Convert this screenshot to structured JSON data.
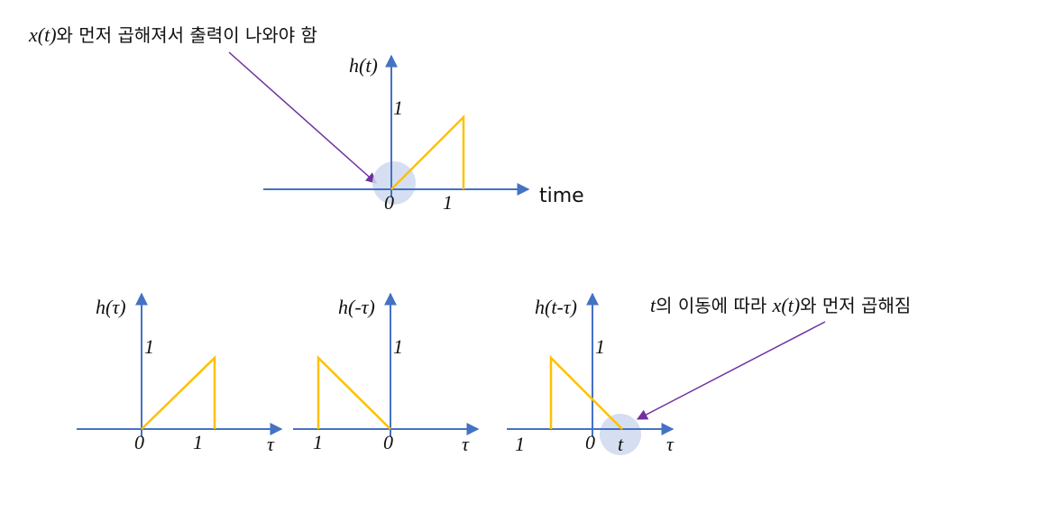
{
  "top_note": {
    "prefix": "x(t)",
    "text": "와 먼저 곱해져서 출력이 나와야 함"
  },
  "right_note": {
    "t": "t",
    "mid": "의 이동에 따라 ",
    "x": "x(t)",
    "text": "와 먼저 곱해짐"
  },
  "main_graph": {
    "ylabel": "h(t)",
    "ytick": "1",
    "origin": "0",
    "xtick": "1",
    "xlabel": "time"
  },
  "graph1": {
    "ylabel": "h(τ)",
    "ytick": "1",
    "origin": "0",
    "xtick": "1",
    "xlabel": "τ"
  },
  "graph2": {
    "ylabel": "h(-τ)",
    "ytick": "1",
    "xtick_left": "1",
    "origin": "0",
    "xlabel": "τ"
  },
  "graph3": {
    "ylabel": "h(t-τ)",
    "ytick": "1",
    "xtick_left": "1",
    "origin": "0",
    "t_label": "t",
    "xlabel": "τ"
  },
  "colors": {
    "axis": "#4472c4",
    "signal": "#ffc000",
    "arrow": "#7030a0",
    "highlight": "#cfd8ee"
  }
}
